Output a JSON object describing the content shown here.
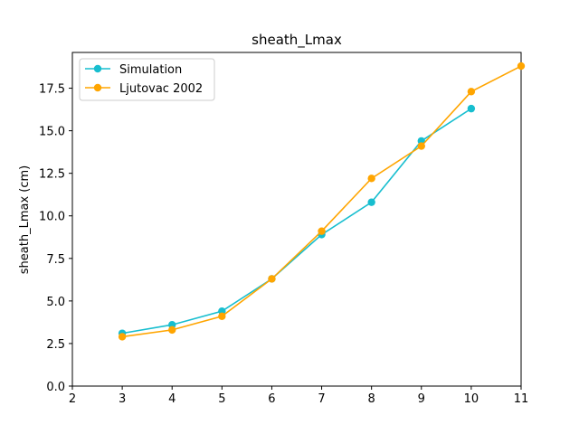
{
  "chart_data": {
    "type": "line",
    "title": "sheath_Lmax",
    "xlabel": "",
    "ylabel": "sheath_Lmax (cm)",
    "xlim": [
      2,
      11
    ],
    "ylim": [
      0,
      19.6
    ],
    "xticks": [
      "2",
      "3",
      "4",
      "5",
      "6",
      "7",
      "8",
      "9",
      "10",
      "11"
    ],
    "yticks": [
      "0.0",
      "2.5",
      "5.0",
      "7.5",
      "10.0",
      "12.5",
      "15.0",
      "17.5"
    ],
    "grid": false,
    "legend_position": "upper-left",
    "series": [
      {
        "name": "Simulation",
        "color": "#17becf",
        "marker": "circle",
        "x": [
          3,
          4,
          5,
          6,
          7,
          8,
          9,
          10
        ],
        "y": [
          3.1,
          3.6,
          4.4,
          6.3,
          8.9,
          10.8,
          14.4,
          16.3
        ]
      },
      {
        "name": "Ljutovac 2002",
        "color": "#ffa500",
        "marker": "circle",
        "x": [
          3,
          4,
          5,
          6,
          7,
          8,
          9,
          10,
          11
        ],
        "y": [
          2.9,
          3.3,
          4.1,
          6.3,
          9.1,
          12.2,
          14.1,
          17.3,
          18.8
        ]
      }
    ]
  }
}
